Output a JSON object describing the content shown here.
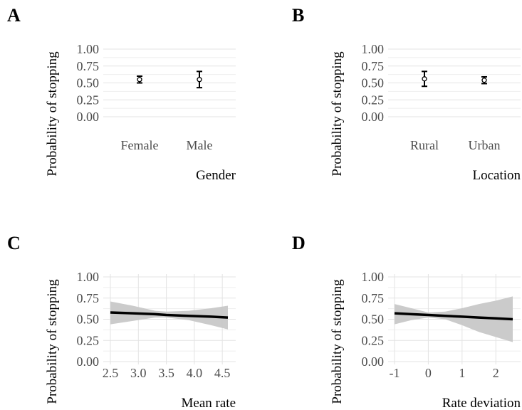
{
  "chart_data": [
    {
      "panel": "A",
      "type": "scatter",
      "xlabel": "Gender",
      "ylabel": "Probability of stopping",
      "ylim": [
        0,
        1
      ],
      "yticks": [
        "0.00",
        "0.25",
        "0.50",
        "0.75",
        "1.00"
      ],
      "categories": [
        "Female",
        "Male"
      ],
      "points": [
        {
          "category": "Female",
          "y": 0.55,
          "lower": 0.5,
          "upper": 0.6
        },
        {
          "category": "Male",
          "y": 0.55,
          "lower": 0.43,
          "upper": 0.67
        }
      ]
    },
    {
      "panel": "B",
      "type": "scatter",
      "xlabel": "Location",
      "ylabel": "Probability of stopping",
      "ylim": [
        0,
        1
      ],
      "yticks": [
        "0.00",
        "0.25",
        "0.50",
        "0.75",
        "1.00"
      ],
      "categories": [
        "Rural",
        "Urban"
      ],
      "points": [
        {
          "category": "Rural",
          "y": 0.56,
          "lower": 0.45,
          "upper": 0.67
        },
        {
          "category": "Urban",
          "y": 0.54,
          "lower": 0.49,
          "upper": 0.59
        }
      ]
    },
    {
      "panel": "C",
      "type": "line",
      "xlabel": "Mean rate",
      "ylabel": "Probability of stopping",
      "ylim": [
        0,
        1
      ],
      "xlim": [
        2.5,
        4.6
      ],
      "yticks": [
        "0.00",
        "0.25",
        "0.50",
        "0.75",
        "1.00"
      ],
      "xticks": [
        "2.5",
        "3.0",
        "3.5",
        "4.0",
        "4.5"
      ],
      "x": [
        2.5,
        2.9,
        3.3,
        3.5,
        3.9,
        4.3,
        4.6
      ],
      "y": [
        0.58,
        0.57,
        0.56,
        0.55,
        0.54,
        0.53,
        0.52
      ],
      "lower": [
        0.44,
        0.48,
        0.52,
        0.52,
        0.49,
        0.43,
        0.38
      ],
      "upper": [
        0.71,
        0.66,
        0.6,
        0.59,
        0.6,
        0.63,
        0.66
      ]
    },
    {
      "panel": "D",
      "type": "line",
      "xlabel": "Rate deviation",
      "ylabel": "Probability of stopping",
      "ylim": [
        0,
        1
      ],
      "xlim": [
        -1,
        2.5
      ],
      "yticks": [
        "0.00",
        "0.25",
        "0.50",
        "0.75",
        "1.00"
      ],
      "xticks": [
        "-1",
        "0",
        "1",
        "2"
      ],
      "x": [
        -1,
        -0.5,
        0,
        0.5,
        1,
        1.5,
        2,
        2.5
      ],
      "y": [
        0.57,
        0.56,
        0.55,
        0.54,
        0.53,
        0.52,
        0.51,
        0.5
      ],
      "lower": [
        0.44,
        0.49,
        0.52,
        0.5,
        0.43,
        0.35,
        0.29,
        0.23
      ],
      "upper": [
        0.68,
        0.63,
        0.58,
        0.59,
        0.63,
        0.68,
        0.72,
        0.77
      ]
    }
  ]
}
